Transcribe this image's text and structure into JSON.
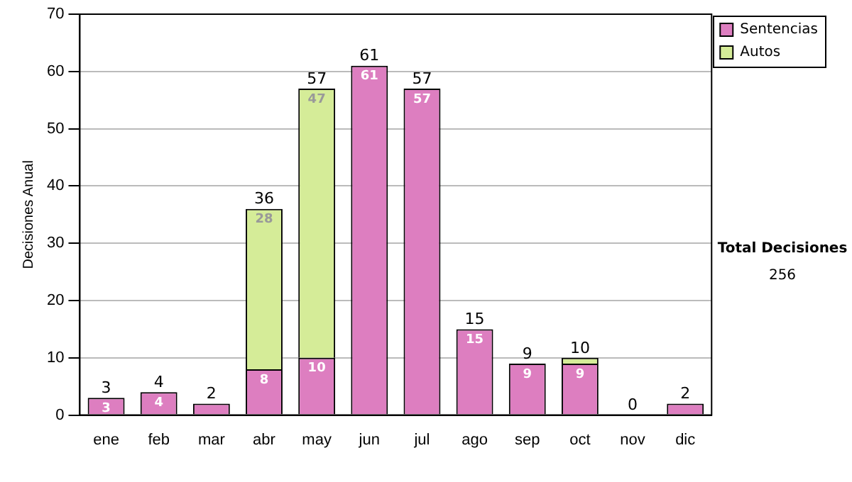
{
  "chart_data": {
    "type": "bar",
    "stacked": true,
    "ylabel": "Decisiones Anual",
    "categories": [
      "ene",
      "feb",
      "mar",
      "abr",
      "may",
      "jun",
      "jul",
      "ago",
      "sep",
      "oct",
      "nov",
      "dic"
    ],
    "series": [
      {
        "name": "Sentencias",
        "color": "#dd7ec0",
        "values": [
          3,
          4,
          2,
          8,
          10,
          61,
          57,
          15,
          9,
          9,
          0,
          2
        ],
        "value_labels": [
          "3",
          "4",
          null,
          "8",
          "10",
          "61",
          "57",
          "15",
          "9",
          "9",
          null,
          null
        ]
      },
      {
        "name": "Autos",
        "color": "#d5ec98",
        "values": [
          0,
          0,
          0,
          28,
          47,
          0,
          0,
          0,
          0,
          1,
          0,
          0
        ],
        "value_labels": [
          null,
          null,
          null,
          "28",
          "47",
          null,
          null,
          null,
          null,
          null,
          null,
          null
        ]
      }
    ],
    "totals": [
      "3",
      "4",
      "2",
      "36",
      "57",
      "61",
      "57",
      "15",
      "9",
      "10",
      "0",
      "2"
    ],
    "ylim": [
      0,
      70
    ],
    "yticks": [
      0,
      10,
      20,
      30,
      40,
      50,
      60,
      70
    ],
    "grid": "y",
    "legend": "right",
    "annotations": [
      "Total Decisiones",
      "256"
    ]
  }
}
